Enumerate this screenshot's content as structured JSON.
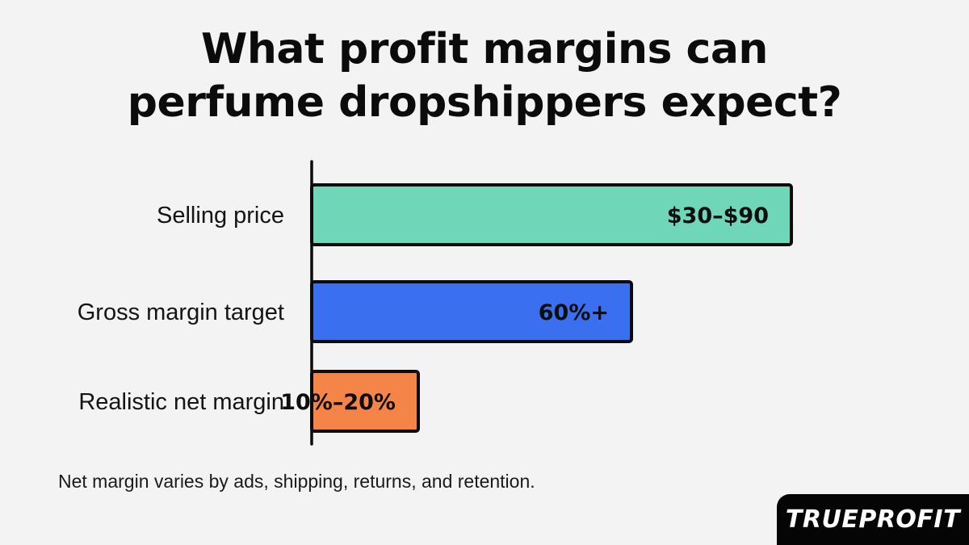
{
  "chart_data": {
    "type": "bar",
    "orientation": "horizontal",
    "title_lines": [
      "What profit margins can",
      "perfume dropshippers expect?"
    ],
    "categories": [
      "Selling price",
      "Gross margin target",
      "Realistic net margin"
    ],
    "values": [
      90,
      60,
      20
    ],
    "data_labels": [
      "$30–$90",
      "60%+",
      "10%–20%"
    ],
    "colors": [
      "#6fd6b7",
      "#3a6ff0",
      "#f58449"
    ],
    "xlim": [
      0,
      100
    ],
    "xlabel": "",
    "ylabel": "",
    "grid": false,
    "legend": "none",
    "footnote": "Net margin varies by ads, shipping, returns, and retention."
  },
  "branding": {
    "logo_text": "TRUEPROFIT"
  }
}
